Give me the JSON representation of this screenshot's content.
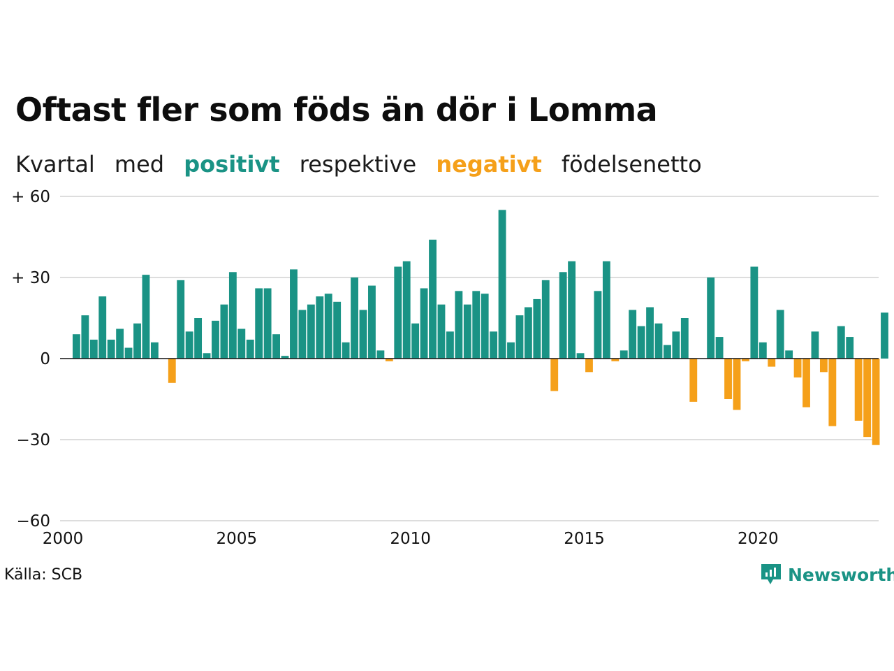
{
  "title": "Oftast fler som föds än dör i Lomma",
  "subtitle": {
    "w1": "Kvartal",
    "w2": "med",
    "positive": "positivt",
    "w3": "respektive",
    "negative": "negativt",
    "w4": "födelsenetto"
  },
  "source": "Källa: SCB",
  "brand": "Newsworthy",
  "colors": {
    "positive": "#1a9385",
    "negative": "#f5a01a",
    "grid": "#dddddd",
    "zero": "#111111"
  },
  "chart_data": {
    "type": "bar",
    "x_start": "2000 Q1",
    "x_end": "2023 Q2",
    "xticks": [
      2000,
      2005,
      2010,
      2015,
      2020
    ],
    "ylim": [
      -60,
      60
    ],
    "yticks": [
      {
        "value": 60,
        "label": "+ 60"
      },
      {
        "value": 30,
        "label": "+ 30"
      },
      {
        "value": 0,
        "label": "0"
      },
      {
        "value": -30,
        "label": "−30"
      },
      {
        "value": -60,
        "label": "−60"
      }
    ],
    "grid": true,
    "series": [
      {
        "values": [
          9,
          16,
          7,
          23,
          7,
          11,
          4,
          13,
          31,
          6,
          0,
          -9,
          29,
          10,
          15,
          2,
          14,
          20,
          32,
          11,
          7,
          26,
          26,
          9,
          1,
          33,
          18,
          20,
          23,
          24,
          21,
          6,
          30,
          18,
          27,
          3,
          -1,
          34,
          36,
          13,
          26,
          44,
          20,
          10,
          25,
          20,
          25,
          24,
          10,
          55,
          6,
          16,
          19,
          22,
          29,
          -12,
          32,
          36,
          2,
          -5,
          25,
          36,
          -1,
          3,
          18,
          12,
          19,
          13,
          5,
          10,
          15,
          -16,
          0,
          30,
          8,
          -15,
          -19,
          -1,
          34,
          6,
          -3,
          18,
          3,
          -7,
          -18,
          10,
          -5,
          -25,
          12,
          8,
          -23,
          -29,
          -32,
          17
        ]
      }
    ]
  }
}
